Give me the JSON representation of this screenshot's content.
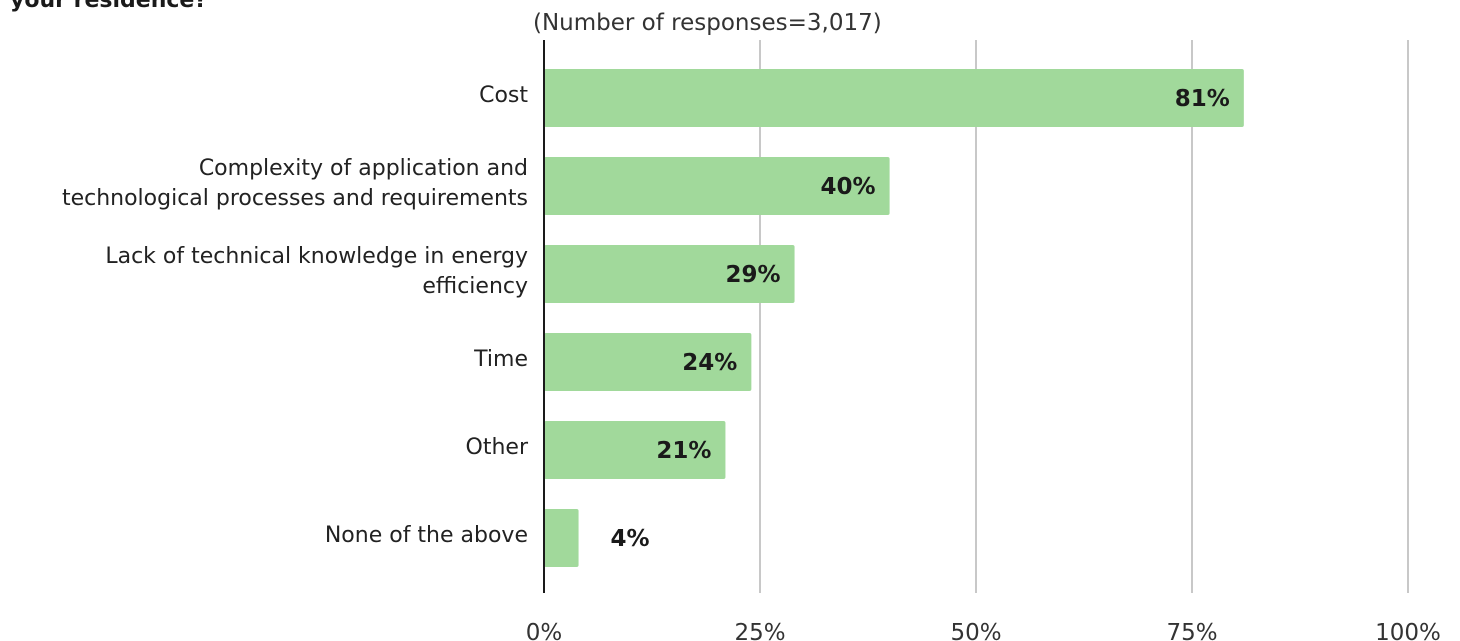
{
  "page": {
    "title_fragment": "your residence?",
    "subtitle": "(Number of responses=3,017)"
  },
  "chart_data": {
    "type": "bar",
    "orientation": "horizontal",
    "title": "",
    "subtitle": "(Number of responses=3,017)",
    "categories": [
      "Cost",
      "Complexity of application and technological processes and requirements",
      "Lack of technical knowledge in energy efficiency",
      "Time",
      "Other",
      "None of the above"
    ],
    "category_lines": [
      [
        "Cost"
      ],
      [
        "Complexity of application and",
        "technological processes and requirements"
      ],
      [
        "Lack of technical knowledge in energy",
        "efficiency"
      ],
      [
        "Time"
      ],
      [
        "Other"
      ],
      [
        "None of the above"
      ]
    ],
    "values": [
      81,
      40,
      29,
      24,
      21,
      4
    ],
    "value_labels": [
      "81%",
      "40%",
      "29%",
      "24%",
      "21%",
      "4%"
    ],
    "xlim": [
      0,
      100
    ],
    "xticks": [
      0,
      25,
      50,
      75,
      100
    ],
    "xtick_labels": [
      "0%",
      "25%",
      "50%",
      "75%",
      "100%"
    ],
    "grid": "vertical",
    "bar_color": "#a1d99b",
    "axis_color": "#1a1a1a",
    "grid_color": "#c8c8c8"
  }
}
